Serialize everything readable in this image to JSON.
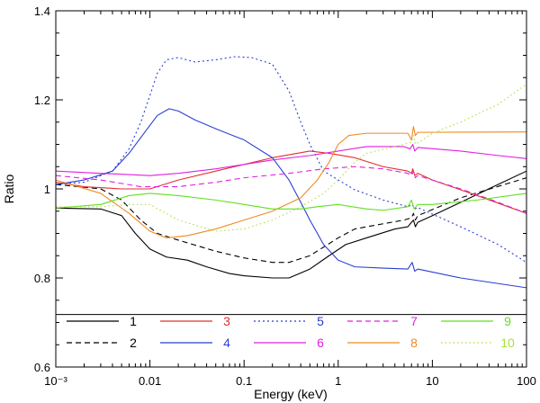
{
  "chart_data": {
    "type": "line",
    "title": "",
    "xlabel": "Energy (keV)",
    "ylabel": "Ratio",
    "xscale": "log",
    "xlim": [
      0.001,
      100
    ],
    "ylim": [
      0.6,
      1.4
    ],
    "grid": false,
    "legend_position": "bottom-inset",
    "x_ticks": [
      {
        "value": 0.001,
        "label": "10⁻³"
      },
      {
        "value": 0.01,
        "label": "0.01"
      },
      {
        "value": 0.1,
        "label": "0.1"
      },
      {
        "value": 1,
        "label": "1"
      },
      {
        "value": 10,
        "label": "10"
      },
      {
        "value": 100,
        "label": "100"
      }
    ],
    "y_ticks": [
      {
        "value": 0.6,
        "label": "0.6"
      },
      {
        "value": 0.8,
        "label": "0.8"
      },
      {
        "value": 1.0,
        "label": "1"
      },
      {
        "value": 1.2,
        "label": "1.2"
      },
      {
        "value": 1.4,
        "label": "1.4"
      }
    ],
    "legend_separator_y": 0.718,
    "series": [
      {
        "name": "1",
        "color": "#000000",
        "dash": "solid",
        "points": [
          [
            0.001,
            0.957
          ],
          [
            0.003,
            0.955
          ],
          [
            0.005,
            0.94
          ],
          [
            0.007,
            0.9
          ],
          [
            0.01,
            0.865
          ],
          [
            0.015,
            0.847
          ],
          [
            0.025,
            0.84
          ],
          [
            0.04,
            0.825
          ],
          [
            0.07,
            0.81
          ],
          [
            0.1,
            0.805
          ],
          [
            0.2,
            0.8
          ],
          [
            0.3,
            0.8
          ],
          [
            0.5,
            0.82
          ],
          [
            0.8,
            0.85
          ],
          [
            1.2,
            0.875
          ],
          [
            2,
            0.89
          ],
          [
            4,
            0.91
          ],
          [
            5.5,
            0.915
          ],
          [
            6,
            0.925
          ],
          [
            6.3,
            0.93
          ],
          [
            6.6,
            0.915
          ],
          [
            7,
            0.925
          ],
          [
            10,
            0.94
          ],
          [
            20,
            0.97
          ],
          [
            50,
            1.01
          ],
          [
            100,
            1.04
          ]
        ]
      },
      {
        "name": "2",
        "color": "#000000",
        "dash": "6,4",
        "points": [
          [
            0.001,
            1.01
          ],
          [
            0.003,
            1.0
          ],
          [
            0.005,
            0.975
          ],
          [
            0.008,
            0.93
          ],
          [
            0.012,
            0.9
          ],
          [
            0.02,
            0.885
          ],
          [
            0.05,
            0.86
          ],
          [
            0.1,
            0.845
          ],
          [
            0.2,
            0.835
          ],
          [
            0.3,
            0.835
          ],
          [
            0.5,
            0.85
          ],
          [
            1,
            0.89
          ],
          [
            1.5,
            0.91
          ],
          [
            2,
            0.915
          ],
          [
            5,
            0.93
          ],
          [
            6,
            0.935
          ],
          [
            6.3,
            0.945
          ],
          [
            6.6,
            0.93
          ],
          [
            7,
            0.94
          ],
          [
            20,
            0.98
          ],
          [
            100,
            1.025
          ]
        ]
      },
      {
        "name": "3",
        "color": "#e03030",
        "dash": "solid",
        "points": [
          [
            0.001,
            1.015
          ],
          [
            0.002,
            1.005
          ],
          [
            0.005,
            1.0
          ],
          [
            0.01,
            1.0
          ],
          [
            0.02,
            1.02
          ],
          [
            0.05,
            1.04
          ],
          [
            0.1,
            1.055
          ],
          [
            0.2,
            1.07
          ],
          [
            0.5,
            1.085
          ],
          [
            0.8,
            1.08
          ],
          [
            1.5,
            1.07
          ],
          [
            3,
            1.05
          ],
          [
            5.5,
            1.04
          ],
          [
            6,
            1.035
          ],
          [
            6.2,
            1.045
          ],
          [
            6.5,
            1.03
          ],
          [
            7,
            1.035
          ],
          [
            10,
            1.02
          ],
          [
            30,
            0.985
          ],
          [
            100,
            0.945
          ]
        ]
      },
      {
        "name": "4",
        "color": "#2a3fd0",
        "dash": "solid",
        "points": [
          [
            0.001,
            1.01
          ],
          [
            0.002,
            1.02
          ],
          [
            0.004,
            1.04
          ],
          [
            0.006,
            1.08
          ],
          [
            0.009,
            1.13
          ],
          [
            0.012,
            1.165
          ],
          [
            0.016,
            1.18
          ],
          [
            0.02,
            1.175
          ],
          [
            0.03,
            1.155
          ],
          [
            0.05,
            1.135
          ],
          [
            0.1,
            1.11
          ],
          [
            0.2,
            1.07
          ],
          [
            0.3,
            1.02
          ],
          [
            0.4,
            0.97
          ],
          [
            0.5,
            0.93
          ],
          [
            0.7,
            0.875
          ],
          [
            1,
            0.84
          ],
          [
            1.5,
            0.825
          ],
          [
            3,
            0.822
          ],
          [
            5.5,
            0.82
          ],
          [
            6.1,
            0.835
          ],
          [
            6.5,
            0.815
          ],
          [
            7,
            0.82
          ],
          [
            20,
            0.8
          ],
          [
            100,
            0.778
          ]
        ]
      },
      {
        "name": "5",
        "color": "#2a3fd0",
        "dash": "2,3",
        "points": [
          [
            0.001,
            1.01
          ],
          [
            0.002,
            1.015
          ],
          [
            0.004,
            1.04
          ],
          [
            0.006,
            1.09
          ],
          [
            0.008,
            1.15
          ],
          [
            0.01,
            1.21
          ],
          [
            0.012,
            1.26
          ],
          [
            0.015,
            1.29
          ],
          [
            0.02,
            1.295
          ],
          [
            0.03,
            1.285
          ],
          [
            0.05,
            1.29
          ],
          [
            0.08,
            1.297
          ],
          [
            0.12,
            1.295
          ],
          [
            0.2,
            1.28
          ],
          [
            0.3,
            1.22
          ],
          [
            0.4,
            1.15
          ],
          [
            0.5,
            1.1
          ],
          [
            0.7,
            1.04
          ],
          [
            1,
            1.02
          ],
          [
            1.5,
            0.998
          ],
          [
            3,
            0.975
          ],
          [
            5.5,
            0.96
          ],
          [
            6.1,
            0.965
          ],
          [
            6.5,
            0.955
          ],
          [
            7,
            0.958
          ],
          [
            20,
            0.915
          ],
          [
            50,
            0.875
          ],
          [
            100,
            0.835
          ]
        ]
      },
      {
        "name": "6",
        "color": "#e020e0",
        "dash": "solid",
        "points": [
          [
            0.001,
            1.04
          ],
          [
            0.003,
            1.035
          ],
          [
            0.01,
            1.03
          ],
          [
            0.02,
            1.035
          ],
          [
            0.05,
            1.045
          ],
          [
            0.1,
            1.055
          ],
          [
            0.2,
            1.065
          ],
          [
            0.5,
            1.075
          ],
          [
            1,
            1.085
          ],
          [
            2,
            1.095
          ],
          [
            5,
            1.095
          ],
          [
            5.8,
            1.09
          ],
          [
            6.2,
            1.1
          ],
          [
            6.5,
            1.085
          ],
          [
            7,
            1.093
          ],
          [
            20,
            1.085
          ],
          [
            50,
            1.075
          ],
          [
            100,
            1.068
          ]
        ]
      },
      {
        "name": "7",
        "color": "#e020e0",
        "dash": "6,4",
        "points": [
          [
            0.001,
            1.03
          ],
          [
            0.003,
            1.02
          ],
          [
            0.008,
            1.005
          ],
          [
            0.02,
            1.005
          ],
          [
            0.05,
            1.015
          ],
          [
            0.1,
            1.025
          ],
          [
            0.3,
            1.035
          ],
          [
            0.7,
            1.045
          ],
          [
            1.5,
            1.05
          ],
          [
            3,
            1.045
          ],
          [
            5.5,
            1.035
          ],
          [
            6,
            1.03
          ],
          [
            6.3,
            1.04
          ],
          [
            6.6,
            1.025
          ],
          [
            7,
            1.03
          ],
          [
            20,
            1.0
          ],
          [
            50,
            0.97
          ],
          [
            100,
            0.945
          ]
        ]
      },
      {
        "name": "8",
        "color": "#f08a20",
        "dash": "solid",
        "points": [
          [
            0.001,
            1.02
          ],
          [
            0.003,
            0.99
          ],
          [
            0.006,
            0.945
          ],
          [
            0.01,
            0.905
          ],
          [
            0.015,
            0.89
          ],
          [
            0.025,
            0.895
          ],
          [
            0.05,
            0.91
          ],
          [
            0.1,
            0.93
          ],
          [
            0.2,
            0.95
          ],
          [
            0.4,
            0.98
          ],
          [
            0.6,
            1.02
          ],
          [
            0.8,
            1.06
          ],
          [
            1,
            1.1
          ],
          [
            1.3,
            1.12
          ],
          [
            2,
            1.125
          ],
          [
            5.5,
            1.125
          ],
          [
            6,
            1.11
          ],
          [
            6.3,
            1.14
          ],
          [
            6.6,
            1.12
          ],
          [
            7,
            1.127
          ],
          [
            100,
            1.128
          ]
        ]
      },
      {
        "name": "9",
        "color": "#60e020",
        "dash": "solid",
        "points": [
          [
            0.001,
            0.957
          ],
          [
            0.003,
            0.965
          ],
          [
            0.006,
            0.985
          ],
          [
            0.01,
            0.99
          ],
          [
            0.02,
            0.985
          ],
          [
            0.05,
            0.975
          ],
          [
            0.1,
            0.965
          ],
          [
            0.2,
            0.955
          ],
          [
            0.4,
            0.955
          ],
          [
            0.6,
            0.96
          ],
          [
            1,
            0.965
          ],
          [
            2,
            0.955
          ],
          [
            3,
            0.952
          ],
          [
            5.5,
            0.96
          ],
          [
            6,
            0.975
          ],
          [
            6.4,
            0.955
          ],
          [
            7,
            0.965
          ],
          [
            10,
            0.965
          ],
          [
            30,
            0.975
          ],
          [
            100,
            0.99
          ]
        ]
      },
      {
        "name": "10",
        "color": "#a8e040",
        "dash": "1.5,3",
        "points": [
          [
            0.001,
            0.96
          ],
          [
            0.003,
            0.96
          ],
          [
            0.006,
            0.965
          ],
          [
            0.01,
            0.965
          ],
          [
            0.02,
            0.93
          ],
          [
            0.05,
            0.905
          ],
          [
            0.1,
            0.91
          ],
          [
            0.2,
            0.93
          ],
          [
            0.4,
            0.96
          ],
          [
            0.7,
            0.99
          ],
          [
            1,
            1.02
          ],
          [
            1.5,
            1.06
          ],
          [
            2,
            1.08
          ],
          [
            5,
            1.1
          ],
          [
            6,
            1.105
          ],
          [
            6.3,
            1.12
          ],
          [
            6.6,
            1.1
          ],
          [
            10,
            1.125
          ],
          [
            20,
            1.15
          ],
          [
            50,
            1.19
          ],
          [
            100,
            1.235
          ]
        ]
      }
    ]
  }
}
